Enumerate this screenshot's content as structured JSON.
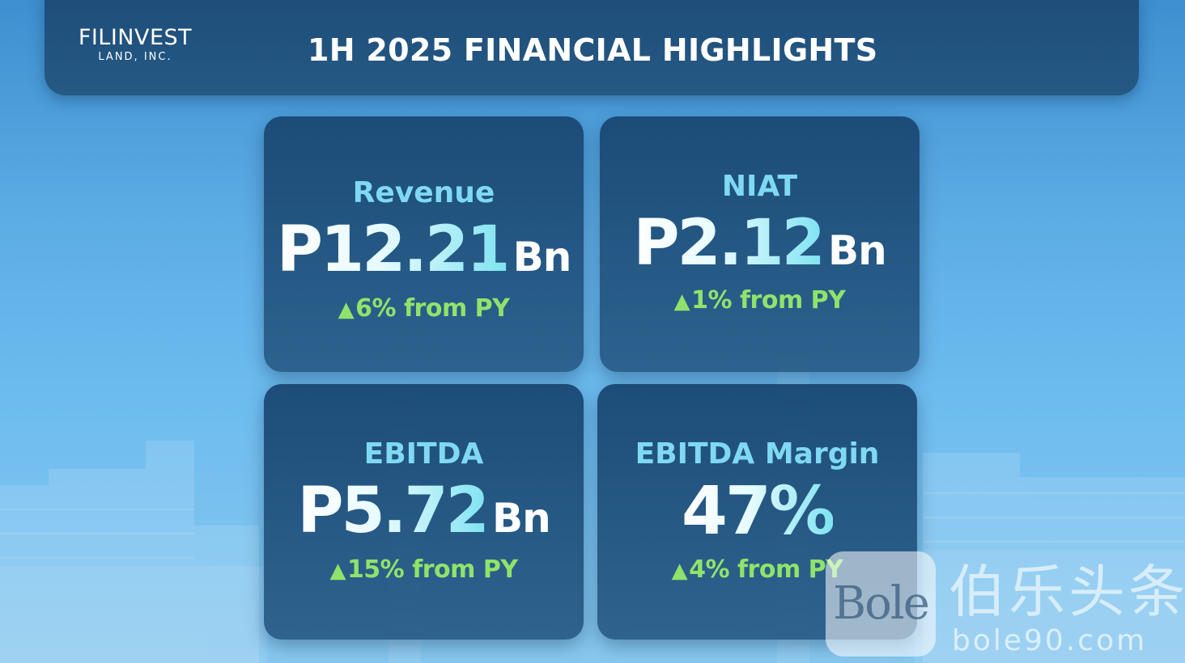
{
  "logo": {
    "main": "FILINVEST",
    "sub": "LAND, INC."
  },
  "header": {
    "title": "1H 2025 FINANCIAL HIGHLIGHTS"
  },
  "metrics": [
    {
      "label": "Revenue",
      "value": "P12.21",
      "unit": "Bn",
      "change": "6% from PY",
      "direction": "up"
    },
    {
      "label": "NIAT",
      "value": "P2.12",
      "unit": "Bn",
      "change": "1% from PY",
      "direction": "up"
    },
    {
      "label": "EBITDA",
      "value": "P5.72",
      "unit": "Bn",
      "change": "15% from PY",
      "direction": "up"
    },
    {
      "label": "EBITDA Margin",
      "value": "47%",
      "unit": "",
      "change": "4% from PY",
      "direction": "up"
    }
  ],
  "watermark": {
    "badge": "Bole",
    "chinese": "伯乐头条",
    "url": "bole90.com"
  },
  "colors": {
    "accent_cyan": "#7fd9f2",
    "positive_green": "#8fe36a",
    "card_navy": "#1a4874"
  }
}
